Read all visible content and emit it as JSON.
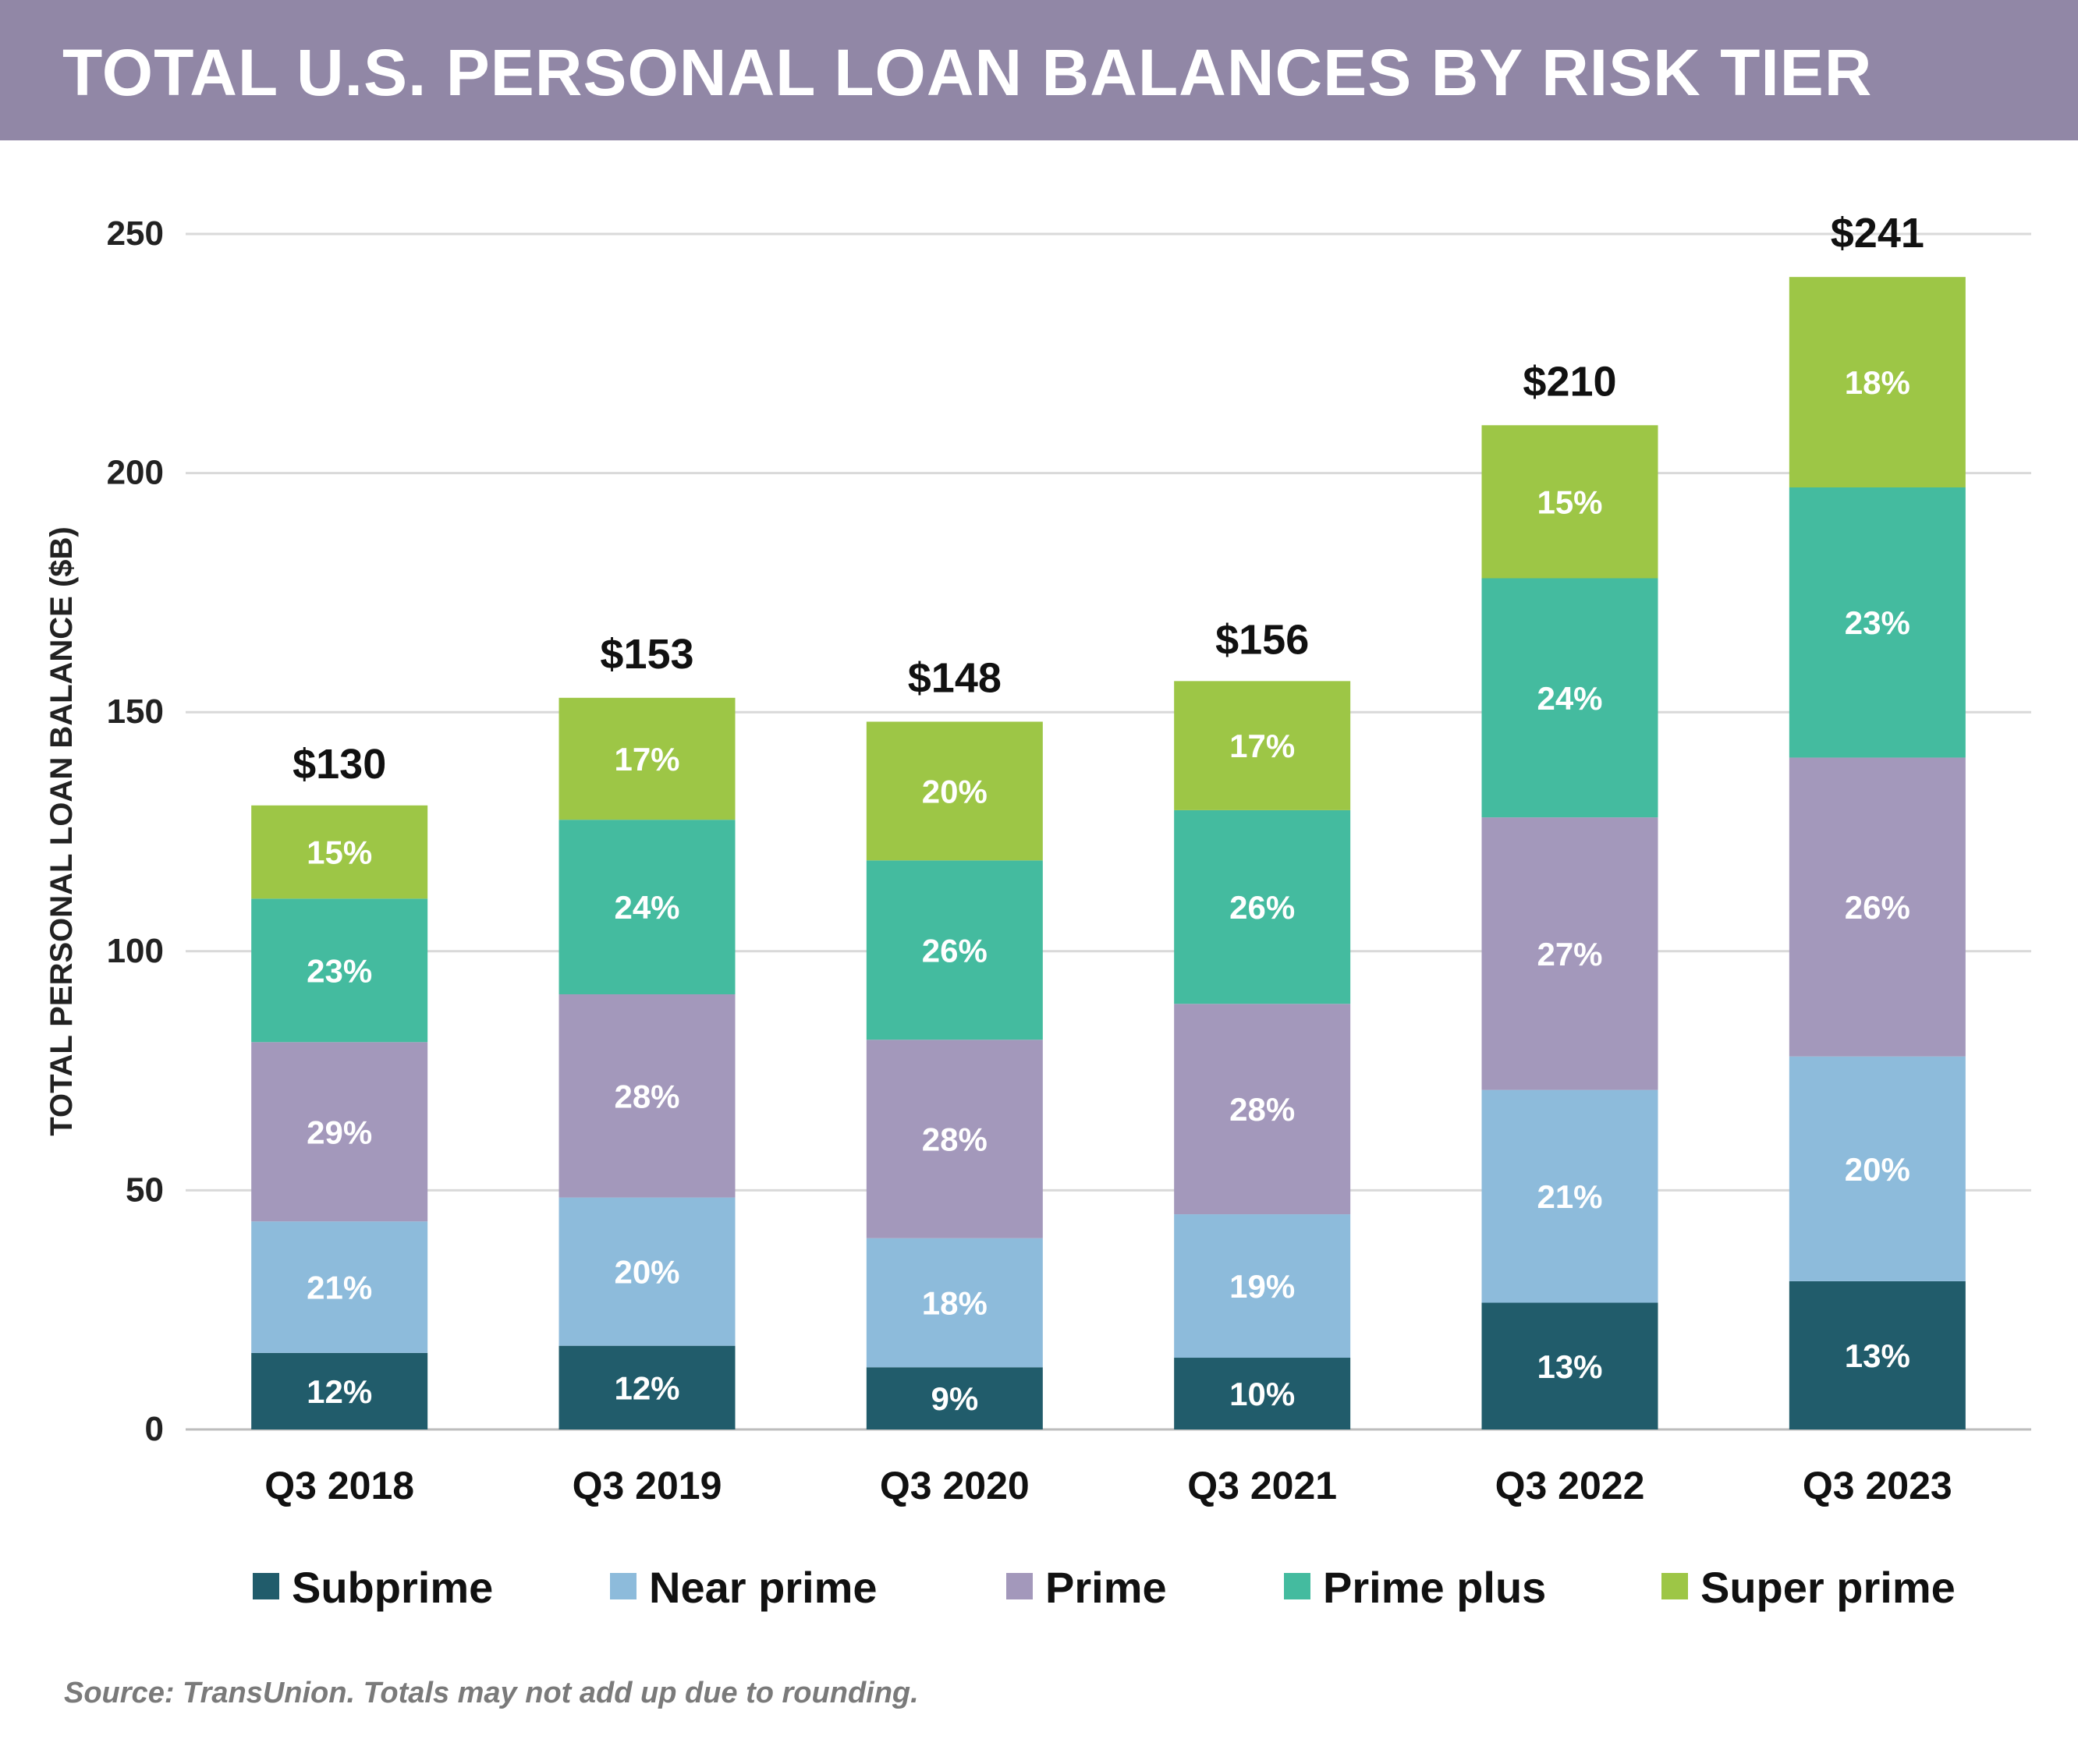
{
  "header": {
    "title": "TOTAL U.S. PERSONAL LOAN BALANCES BY RISK TIER",
    "background": "#9187a6"
  },
  "source": "Source: TransUnion. Totals may not add up due to rounding.",
  "chart_data": {
    "type": "bar",
    "stacked": true,
    "categories": [
      "Q3 2018",
      "Q3 2019",
      "Q3 2020",
      "Q3 2021",
      "Q3 2022",
      "Q3 2023"
    ],
    "totals": [
      130,
      153,
      148,
      156,
      210,
      241
    ],
    "total_labels": [
      "$130",
      "$153",
      "$148",
      "$156",
      "$210",
      "$241"
    ],
    "ylabel": "TOTAL PERSONAL LOAN BALANCE ($B)",
    "ylim": [
      0,
      250
    ],
    "yticks": [
      0,
      50,
      100,
      150,
      200,
      250
    ],
    "grid": true,
    "legend_position": "bottom",
    "series": [
      {
        "name": "Subprime",
        "color": "#215c6b",
        "values": [
          16,
          17.5,
          13,
          15,
          26.5,
          31
        ],
        "labels": [
          "12%",
          "12%",
          "9%",
          "10%",
          "13%",
          "13%"
        ]
      },
      {
        "name": "Near prime",
        "color": "#8dbbdb",
        "values": [
          27.5,
          31,
          27,
          30,
          44.5,
          47
        ],
        "labels": [
          "21%",
          "20%",
          "18%",
          "19%",
          "21%",
          "20%"
        ]
      },
      {
        "name": "Prime",
        "color": "#a398bb",
        "values": [
          37.5,
          42.5,
          41.5,
          44,
          57,
          62.5
        ],
        "labels": [
          "29%",
          "28%",
          "28%",
          "28%",
          "27%",
          "26%"
        ]
      },
      {
        "name": "Prime plus",
        "color": "#44bb9f",
        "values": [
          30,
          36.5,
          37.5,
          40.5,
          50,
          56.5
        ],
        "labels": [
          "23%",
          "24%",
          "26%",
          "26%",
          "24%",
          "23%"
        ]
      },
      {
        "name": "Super prime",
        "color": "#9dc646",
        "values": [
          19.5,
          25.5,
          29,
          27,
          32,
          44
        ],
        "labels": [
          "15%",
          "17%",
          "20%",
          "17%",
          "15%",
          "18%"
        ]
      }
    ]
  }
}
